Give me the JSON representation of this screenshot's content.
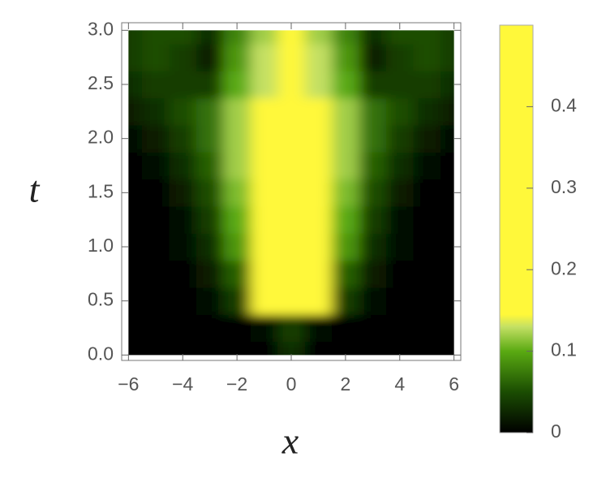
{
  "chart_data": {
    "type": "heatmap",
    "x_label": "x",
    "y_label": "t",
    "x": [
      -6,
      -5,
      -4,
      -3,
      -2,
      -1,
      0,
      1,
      2,
      3,
      4,
      5,
      6
    ],
    "y": [
      0,
      0.25,
      0.5,
      0.75,
      1,
      1.25,
      1.5,
      1.75,
      2,
      2.25,
      2.5,
      2.75,
      3
    ],
    "values": [
      [
        0,
        0,
        0,
        0,
        0,
        0,
        0.03,
        0,
        0,
        0,
        0,
        0,
        0
      ],
      [
        0,
        0,
        0,
        0,
        0,
        0.01,
        0.04,
        0.01,
        0,
        0,
        0,
        0,
        0
      ],
      [
        0,
        0,
        0,
        0.01,
        0.04,
        0.2,
        0.3,
        0.2,
        0.04,
        0.01,
        0,
        0,
        0
      ],
      [
        0,
        0,
        0,
        0.02,
        0.06,
        0.4,
        0.4,
        0.4,
        0.06,
        0.02,
        0,
        0,
        0
      ],
      [
        0,
        0,
        0.01,
        0.03,
        0.09,
        0.4,
        0.4,
        0.4,
        0.09,
        0.03,
        0.01,
        0,
        0
      ],
      [
        0,
        0,
        0.01,
        0.04,
        0.1,
        0.4,
        0.4,
        0.4,
        0.1,
        0.04,
        0.01,
        0,
        0
      ],
      [
        0,
        0,
        0.02,
        0.05,
        0.11,
        0.4,
        0.4,
        0.4,
        0.11,
        0.05,
        0.02,
        0,
        0
      ],
      [
        0,
        0.01,
        0.03,
        0.06,
        0.12,
        0.4,
        0.4,
        0.4,
        0.12,
        0.06,
        0.03,
        0.01,
        0
      ],
      [
        0.01,
        0.02,
        0.04,
        0.07,
        0.12,
        0.4,
        0.4,
        0.4,
        0.12,
        0.07,
        0.04,
        0.02,
        0.01
      ],
      [
        0.02,
        0.03,
        0.05,
        0.07,
        0.12,
        0.3,
        0.4,
        0.3,
        0.12,
        0.07,
        0.05,
        0.03,
        0.02
      ],
      [
        0.03,
        0.04,
        0.04,
        0.04,
        0.1,
        0.13,
        0.4,
        0.13,
        0.1,
        0.04,
        0.04,
        0.04,
        0.03
      ],
      [
        0.04,
        0.05,
        0.04,
        0.02,
        0.09,
        0.13,
        0.4,
        0.13,
        0.09,
        0.02,
        0.04,
        0.05,
        0.04
      ],
      [
        0.04,
        0.05,
        0.05,
        0.03,
        0.08,
        0.12,
        0.4,
        0.12,
        0.08,
        0.03,
        0.05,
        0.05,
        0.04
      ]
    ],
    "x_extent": [
      -6,
      6
    ],
    "y_extent": [
      0,
      3
    ],
    "xlim": [
      -6.25,
      6.25
    ],
    "ylim": [
      -0.05,
      3.07
    ],
    "xticks": [
      {
        "value": -6,
        "label": "−6"
      },
      {
        "value": -4,
        "label": "−4"
      },
      {
        "value": -2,
        "label": "−2"
      },
      0,
      2,
      4,
      6
    ],
    "yticks": [
      {
        "value": 0,
        "label": "0.0"
      },
      {
        "value": 0.5,
        "label": "0.5"
      },
      {
        "value": 1,
        "label": "1.0"
      },
      {
        "value": 1.5,
        "label": "1.5"
      },
      {
        "value": 2,
        "label": "2.0"
      },
      {
        "value": 2.5,
        "label": "2.5"
      },
      {
        "value": 3,
        "label": "3.0"
      }
    ],
    "colorbar_lim": [
      0,
      0.5
    ],
    "colorbar_ticks": [
      0,
      0.1,
      0.2,
      0.3,
      0.4
    ],
    "colormap": [
      [
        0,
        "#000000"
      ],
      [
        0.05,
        "#1b4d02"
      ],
      [
        0.1,
        "#5aaa12"
      ],
      [
        0.13,
        "#c4e064"
      ],
      [
        0.145,
        "#fff83a"
      ],
      [
        0.5,
        "#fff83a"
      ]
    ]
  }
}
